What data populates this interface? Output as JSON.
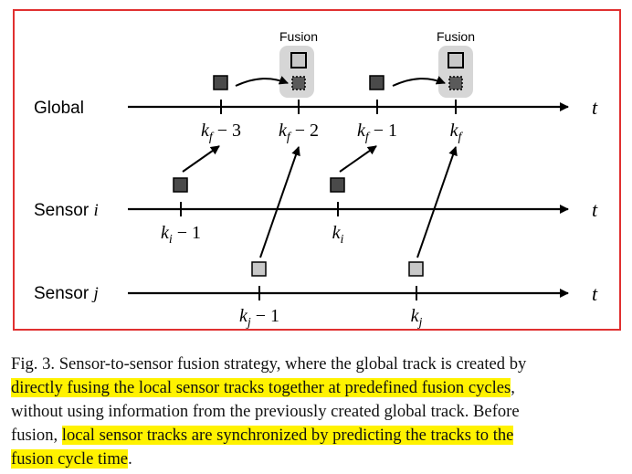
{
  "figure": {
    "fusion_labels": [
      "Fusion",
      "Fusion"
    ],
    "rows": [
      {
        "name": "Global",
        "axis_symbol": "t"
      },
      {
        "name": "Sensor ",
        "index": "i",
        "axis_symbol": "t"
      },
      {
        "name": "Sensor ",
        "index": "j",
        "axis_symbol": "t"
      }
    ],
    "global_ticks": [
      {
        "base": "k",
        "sub": "f",
        "suffix": " − 3"
      },
      {
        "base": "k",
        "sub": "f",
        "suffix": " − 2"
      },
      {
        "base": "k",
        "sub": "f",
        "suffix": " − 1"
      },
      {
        "base": "k",
        "sub": "f",
        "suffix": ""
      }
    ],
    "sensor_i_ticks": [
      {
        "base": "k",
        "sub": "i",
        "suffix": " − 1"
      },
      {
        "base": "k",
        "sub": "i",
        "suffix": ""
      }
    ],
    "sensor_j_ticks": [
      {
        "base": "k",
        "sub": "j",
        "suffix": " − 1"
      },
      {
        "base": "k",
        "sub": "j",
        "suffix": ""
      }
    ],
    "colors": {
      "frame": "#e03030",
      "dark_track": "#4a4a4a",
      "light_track": "#c8c8c8",
      "fusion_box": "#d6d6d6",
      "highlight": "#fff200"
    }
  },
  "caption": {
    "lines": [
      [
        {
          "text": "Fig. 3.   Sensor-to-sensor fusion strategy, where the global track is created by",
          "hl": false
        }
      ],
      [
        {
          "text": "directly fusing the local sensor tracks together at predefined fusion cycles",
          "hl": true
        },
        {
          "text": ",",
          "hl": false
        }
      ],
      [
        {
          "text": "without using information from the previously created global track. Before",
          "hl": false
        }
      ],
      [
        {
          "text": "fusion, ",
          "hl": false
        },
        {
          "text": "local sensor tracks are synchronized by predicting the tracks to the",
          "hl": true
        }
      ],
      [
        {
          "text": "fusion cycle time",
          "hl": true
        },
        {
          "text": ".",
          "hl": false
        }
      ]
    ]
  }
}
